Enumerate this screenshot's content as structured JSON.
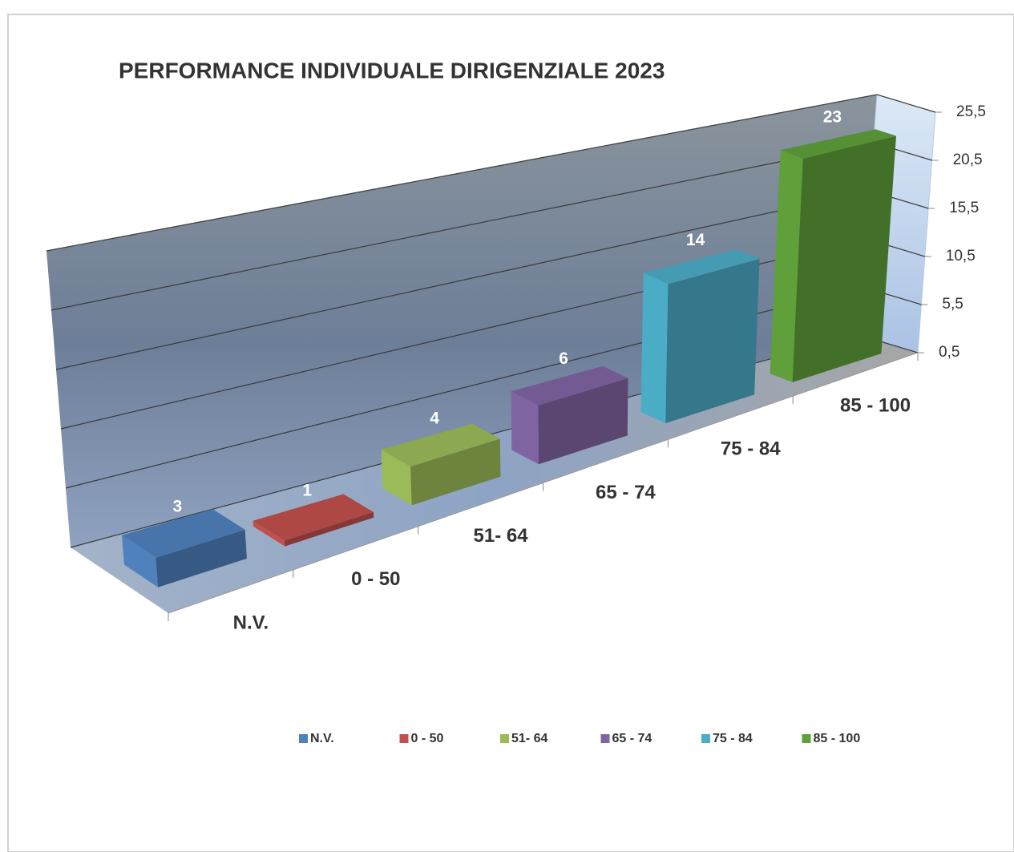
{
  "chart_data": {
    "type": "bar3d",
    "title": "PERFORMANCE INDIVIDUALE DIRIGENZIALE 2023",
    "categories": [
      "N.V.",
      "0 - 50",
      "51- 64",
      "65 - 74",
      "75 - 84",
      "85 - 100"
    ],
    "values": [
      3,
      1,
      4,
      6,
      14,
      23
    ],
    "colors": [
      "#4f81bd",
      "#c0504d",
      "#9bbb59",
      "#8064a2",
      "#4bacc6",
      "#5fa03a"
    ],
    "ylim": [
      0.5,
      25.5
    ],
    "yticks": [
      {
        "value": 0.5,
        "label": "0,5"
      },
      {
        "value": 5.5,
        "label": "5,5"
      },
      {
        "value": 10.5,
        "label": "10,5"
      },
      {
        "value": 15.5,
        "label": "15,5"
      },
      {
        "value": 20.5,
        "label": "20,5"
      },
      {
        "value": 25.5,
        "label": "25,5"
      }
    ],
    "grid": true,
    "legend": "bottom"
  }
}
